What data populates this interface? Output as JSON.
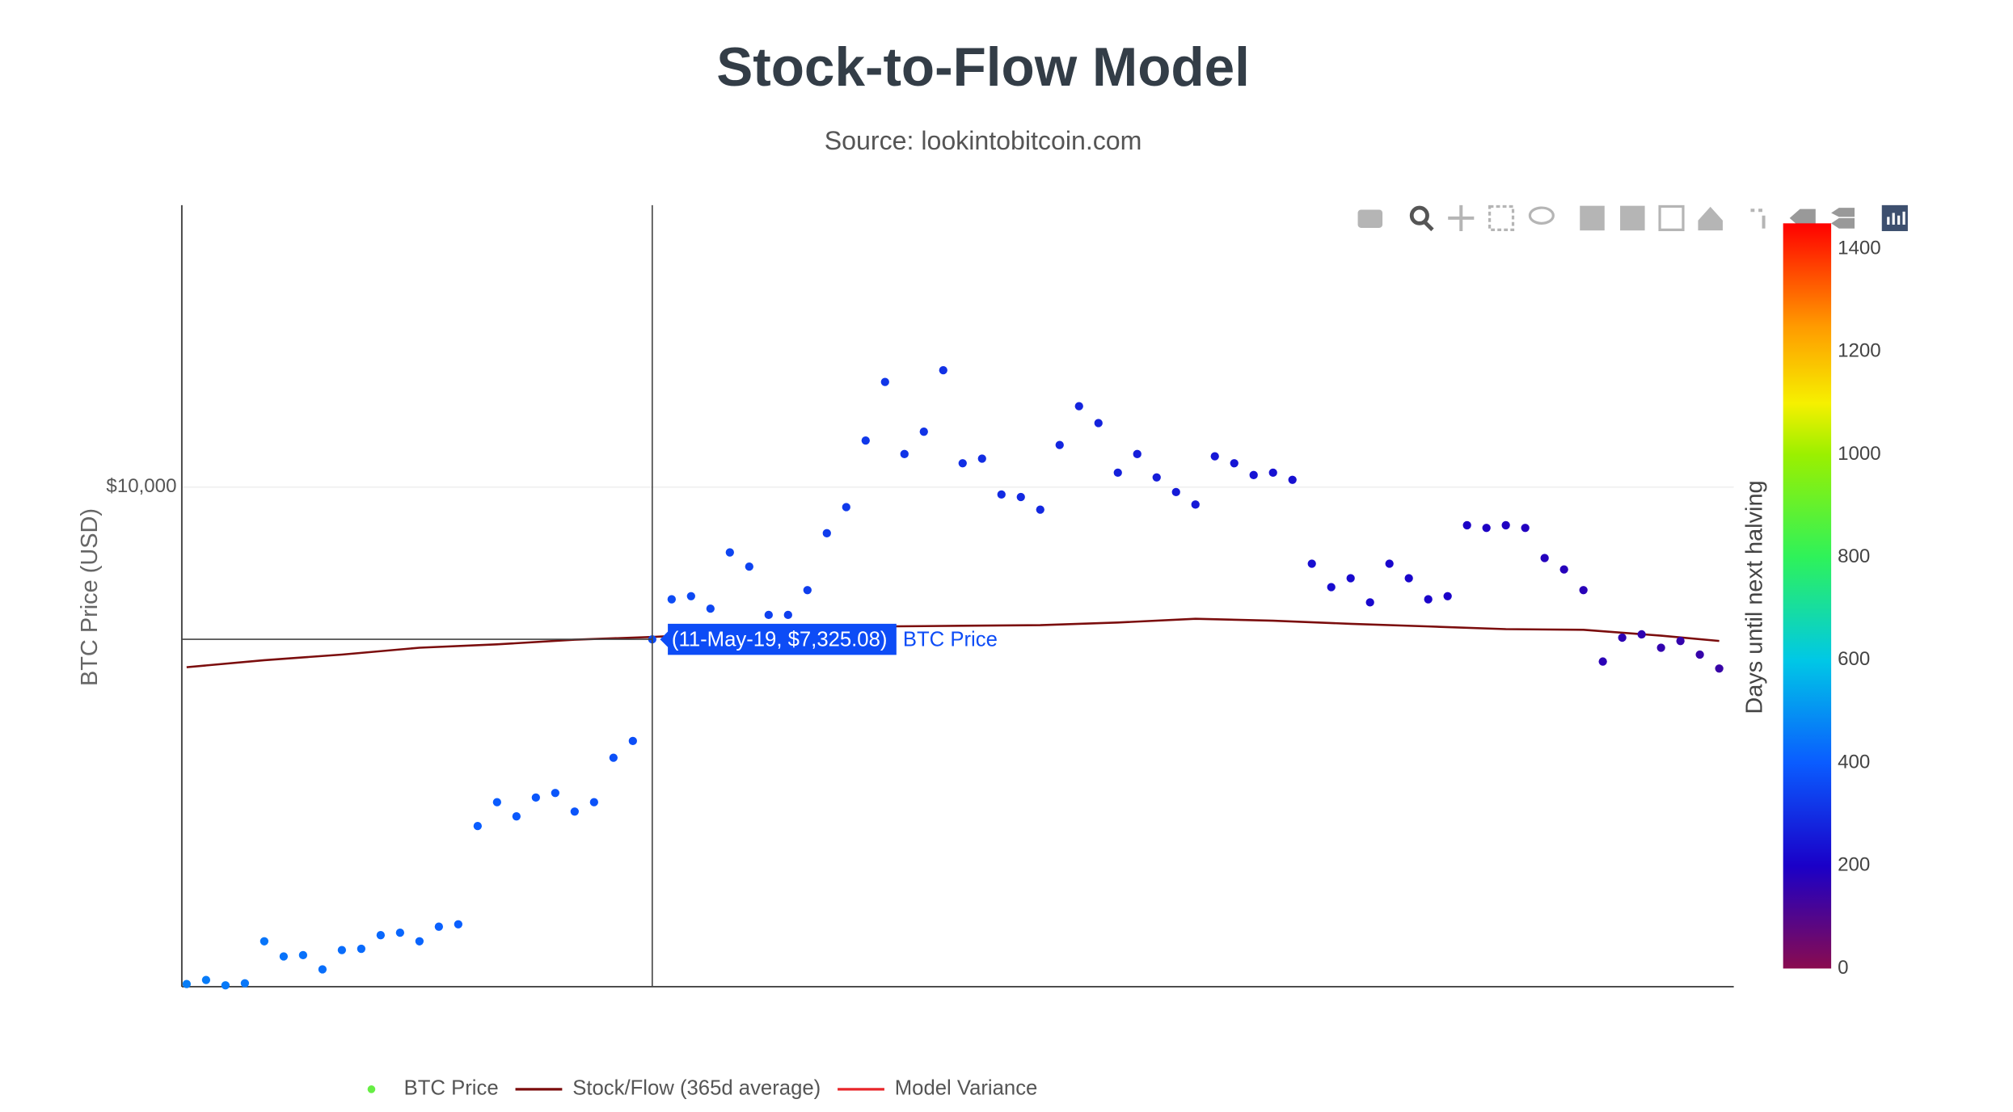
{
  "chart_data": {
    "type": "scatter",
    "title": "Stock-to-Flow Model",
    "subtitle": "Source: lookintobitcoin.com",
    "y_label": "BTC Price (USD)",
    "log_y": true,
    "grid": true,
    "ylim": [
      3600,
      17800
    ],
    "yticks": [
      {
        "value": 10000,
        "label": "$10,000"
      }
    ],
    "xlim": [
      "2019-02-03",
      "2019-12-20"
    ],
    "series": [
      {
        "name": "BTC Price",
        "mode": "markers",
        "color": "#66ee44",
        "x": [
          "2019-02-04",
          "2019-02-08",
          "2019-02-12",
          "2019-02-16",
          "2019-02-20",
          "2019-02-24",
          "2019-02-28",
          "2019-03-04",
          "2019-03-08",
          "2019-03-12",
          "2019-03-16",
          "2019-03-20",
          "2019-03-24",
          "2019-03-28",
          "2019-04-01",
          "2019-04-05",
          "2019-04-09",
          "2019-04-13",
          "2019-04-17",
          "2019-04-21",
          "2019-04-25",
          "2019-04-29",
          "2019-05-03",
          "2019-05-07",
          "2019-05-11",
          "2019-05-15",
          "2019-05-19",
          "2019-05-23",
          "2019-05-27",
          "2019-05-31",
          "2019-06-04",
          "2019-06-08",
          "2019-06-12",
          "2019-06-16",
          "2019-06-20",
          "2019-06-24",
          "2019-06-28",
          "2019-07-02",
          "2019-07-06",
          "2019-07-10",
          "2019-07-14",
          "2019-07-18",
          "2019-07-22",
          "2019-07-26",
          "2019-07-30",
          "2019-08-03",
          "2019-08-07",
          "2019-08-11",
          "2019-08-15",
          "2019-08-19",
          "2019-08-23",
          "2019-08-27",
          "2019-08-31",
          "2019-09-04",
          "2019-09-08",
          "2019-09-12",
          "2019-09-16",
          "2019-09-20",
          "2019-09-24",
          "2019-09-28",
          "2019-10-02",
          "2019-10-06",
          "2019-10-10",
          "2019-10-14",
          "2019-10-18",
          "2019-10-22",
          "2019-10-26",
          "2019-10-30",
          "2019-11-03",
          "2019-11-07",
          "2019-11-11",
          "2019-11-15",
          "2019-11-19",
          "2019-11-23",
          "2019-11-27",
          "2019-12-01",
          "2019-12-05",
          "2019-12-09",
          "2019-12-13",
          "2019-12-17"
        ],
        "values": [
          3620,
          3650,
          3610,
          3625,
          3950,
          3830,
          3840,
          3730,
          3880,
          3890,
          4000,
          4020,
          3950,
          4070,
          4090,
          5000,
          5250,
          5100,
          5300,
          5350,
          5150,
          5250,
          5750,
          5950,
          7325.08,
          7950,
          8000,
          7800,
          8750,
          8500,
          7700,
          7700,
          8100,
          9100,
          9600,
          11000,
          12400,
          10700,
          11200,
          12700,
          10500,
          10600,
          9850,
          9800,
          9550,
          10900,
          11800,
          11400,
          10300,
          10700,
          10200,
          9900,
          9650,
          10650,
          10500,
          10250,
          10300,
          10150,
          8550,
          8150,
          8300,
          7900,
          8550,
          8300,
          7950,
          8000,
          9250,
          9200,
          9250,
          9200,
          8650,
          8450,
          8100,
          7000,
          7350,
          7400,
          7200,
          7300,
          7100,
          6900
        ],
        "color_values": [
          462,
          458,
          454,
          450,
          446,
          442,
          438,
          434,
          430,
          426,
          422,
          418,
          414,
          410,
          406,
          402,
          398,
          394,
          390,
          386,
          382,
          378,
          374,
          370,
          366,
          362,
          358,
          354,
          350,
          346,
          342,
          338,
          334,
          330,
          326,
          322,
          318,
          314,
          310,
          306,
          302,
          298,
          294,
          290,
          286,
          282,
          278,
          274,
          270,
          266,
          262,
          258,
          254,
          250,
          246,
          242,
          238,
          234,
          230,
          226,
          222,
          218,
          214,
          210,
          206,
          202,
          198,
          194,
          190,
          186,
          182,
          178,
          174,
          170,
          166,
          162,
          158,
          154,
          150,
          146
        ]
      },
      {
        "name": "Stock/Flow (365d average)",
        "mode": "lines",
        "color": "#7b0d0d",
        "x": [
          "2019-02-04",
          "2019-02-20",
          "2019-03-08",
          "2019-03-24",
          "2019-04-09",
          "2019-04-25",
          "2019-05-11",
          "2019-05-27",
          "2019-06-12",
          "2019-06-28",
          "2019-07-14",
          "2019-07-30",
          "2019-08-15",
          "2019-08-31",
          "2019-09-16",
          "2019-10-02",
          "2019-10-18",
          "2019-11-03",
          "2019-11-19",
          "2019-12-05",
          "2019-12-17"
        ],
        "values": [
          6920,
          7020,
          7100,
          7200,
          7250,
          7320,
          7360,
          7420,
          7480,
          7520,
          7530,
          7540,
          7580,
          7640,
          7610,
          7560,
          7520,
          7480,
          7470,
          7380,
          7300
        ]
      },
      {
        "name": "Model Variance",
        "mode": "lines",
        "color": "#e8262a"
      }
    ],
    "colorbar": {
      "title": "Days until next halving",
      "clim": [
        0,
        1450
      ],
      "ticks": [
        0,
        200,
        400,
        600,
        800,
        1000,
        1200,
        1400
      ],
      "colorscale": [
        [
          0,
          "#8a0b4f"
        ],
        [
          200,
          "#1a00c8"
        ],
        [
          400,
          "#0a5cff"
        ],
        [
          600,
          "#00c8e6"
        ],
        [
          800,
          "#2ef25a"
        ],
        [
          1000,
          "#9bf000"
        ],
        [
          1100,
          "#f6f000"
        ],
        [
          1250,
          "#ff9a00"
        ],
        [
          1450,
          "#ff0000"
        ]
      ]
    },
    "hover": {
      "x": "2019-05-11",
      "label": "(11-May-19, $7,325.08)"
    },
    "legend": "bottom"
  }
}
